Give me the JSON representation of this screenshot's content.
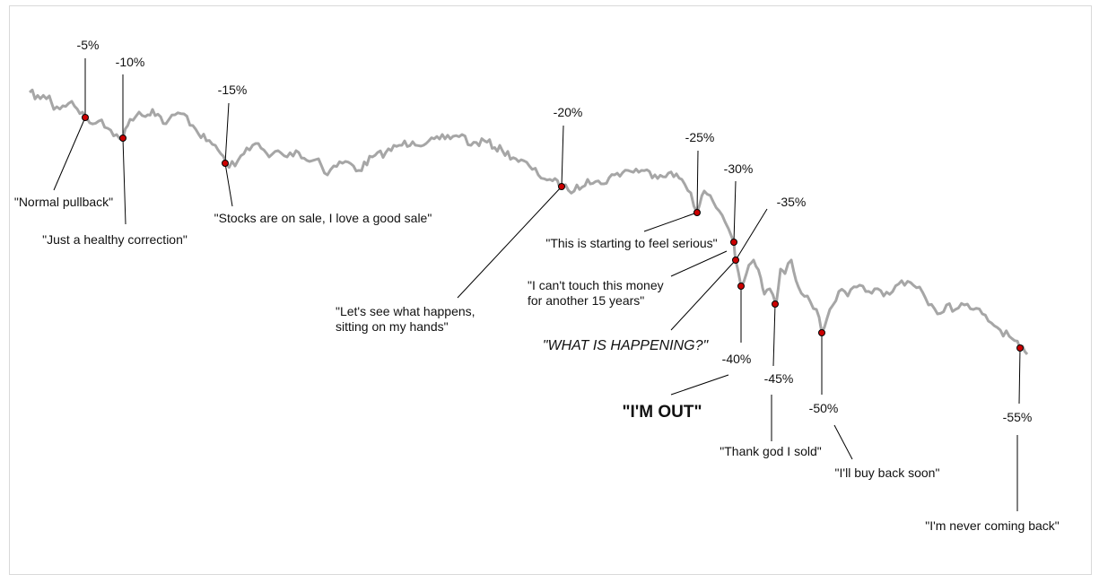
{
  "chart_data": {
    "type": "line",
    "title": "",
    "xlabel": "",
    "ylabel": "",
    "grid": false,
    "legend": "none",
    "series": [
      {
        "color": "#a6a6a6",
        "y": [
          0,
          -1,
          -2,
          -1.5,
          -3,
          -4,
          -5,
          -4.5,
          -6,
          -7.5,
          -8.5,
          -9.5,
          -10,
          -8.5,
          -7,
          -7.5,
          -6,
          -8,
          -9,
          -7,
          -6,
          -6.5,
          -9,
          -11,
          -12.5,
          -14,
          -15,
          -13.5,
          -13,
          -12,
          -12.5,
          -14,
          -13,
          -13.5,
          -12.5,
          -14,
          -13,
          -14.5,
          -15.5,
          -14.5,
          -13.5,
          -12.5,
          -12,
          -12.5,
          -12,
          -11.5,
          -12.5,
          -13.5,
          -12.5,
          -12,
          -13,
          -14,
          -15,
          -16.5,
          -17.5,
          -18.5,
          -19,
          -20,
          -19.5,
          -19,
          -18,
          -17.5,
          -18,
          -17,
          -18,
          -17.5,
          -17,
          -18,
          -19,
          -20,
          -22,
          -24,
          -25,
          -26,
          -28,
          -30,
          -32,
          -35,
          -40,
          -38,
          -37,
          -41,
          -43,
          -45,
          -42,
          -38,
          -36,
          -39,
          -43,
          -47,
          -50,
          -46,
          -44,
          -42,
          -40.5,
          -40,
          -41,
          -42,
          -41.5,
          -40.5,
          -40,
          -41,
          -41.5,
          -39,
          -38.5,
          -40,
          -42,
          -44,
          -46,
          -47,
          -48,
          -50,
          -52,
          -55,
          -55.5
        ]
      }
    ],
    "annotations": [
      {
        "drawdown": "-5%",
        "quote": "\"Normal pullback\"",
        "style": "normal"
      },
      {
        "drawdown": "-10%",
        "quote": "\"Just a healthy correction\"",
        "style": "normal"
      },
      {
        "drawdown": "-15%",
        "quote": "\"Stocks are on sale, I love a good sale\"",
        "style": "normal"
      },
      {
        "drawdown": "-20%",
        "quote": [
          "\"Let's see what happens,",
          "sitting on my hands\""
        ],
        "style": "normal"
      },
      {
        "drawdown": "-25%",
        "quote": "\"This is starting to feel serious\"",
        "style": "normal"
      },
      {
        "drawdown": "-30%",
        "quote": [
          "\"I can't touch this money",
          "for another 15 years\""
        ],
        "style": "normal"
      },
      {
        "drawdown": "-35%",
        "quote": "\"WHAT IS HAPPENING?\"",
        "style": "italic"
      },
      {
        "drawdown": "-40%",
        "quote": "\"I'M OUT\"",
        "style": "bold"
      },
      {
        "drawdown": "-45%",
        "quote": "\"Thank god I sold\"",
        "style": "normal"
      },
      {
        "drawdown": "-50%",
        "quote": "\"I'll buy back soon\"",
        "style": "normal"
      },
      {
        "drawdown": "-55%",
        "quote": "\"I'm never coming back\"",
        "style": "normal"
      }
    ]
  },
  "colors": {
    "line": "#a6a6a6",
    "marker": "#cc0000",
    "marker_edge": "#000000",
    "leader": "#000000"
  }
}
